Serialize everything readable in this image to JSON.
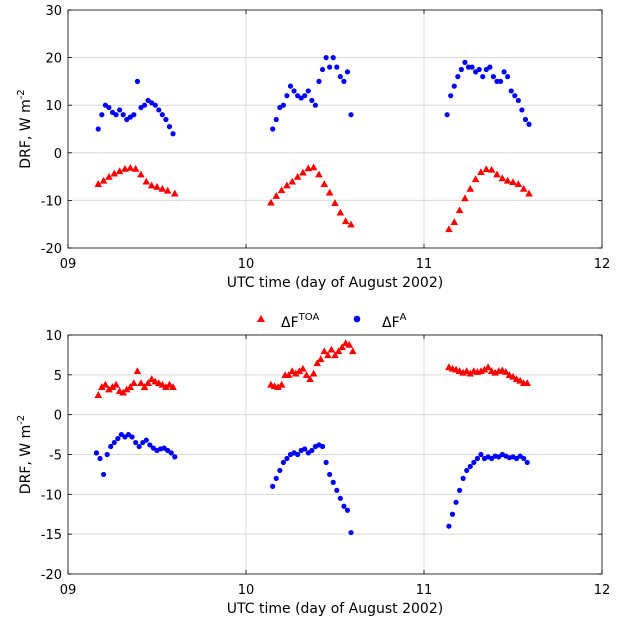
{
  "legend": {
    "toa_main": "ΔF",
    "toa_sup": "TOA",
    "atm_main": "ΔF",
    "atm_sup": "A",
    "colors": {
      "toa": "#ff0000",
      "atm": "#0000ff"
    }
  },
  "chart_data": [
    {
      "type": "scatter",
      "xlabel": "UTC time (day of August 2002)",
      "ylabel_main": "DRF, W m",
      "ylabel_sup": "-2",
      "xlim": [
        9,
        12
      ],
      "ylim": [
        -20,
        30
      ],
      "xticks": [
        9,
        10,
        11,
        12
      ],
      "xtick_labels": [
        "09",
        "10",
        "11",
        "12"
      ],
      "yticks": [
        -20,
        -10,
        0,
        10,
        20,
        30
      ],
      "grid": true,
      "series": [
        {
          "key": "toa",
          "marker": "triangle",
          "color": "#ff0000",
          "x": [
            9.17,
            9.2,
            9.23,
            9.26,
            9.29,
            9.32,
            9.35,
            9.38,
            9.41,
            9.44,
            9.47,
            9.5,
            9.53,
            9.56,
            9.6,
            10.14,
            10.17,
            10.2,
            10.23,
            10.26,
            10.29,
            10.32,
            10.35,
            10.38,
            10.41,
            10.44,
            10.47,
            10.5,
            10.53,
            10.56,
            10.59,
            11.14,
            11.17,
            11.2,
            11.23,
            11.26,
            11.29,
            11.32,
            11.35,
            11.38,
            11.41,
            11.44,
            11.47,
            11.5,
            11.53,
            11.56,
            11.59
          ],
          "y": [
            -6.5,
            -5.8,
            -5,
            -4.3,
            -3.8,
            -3.3,
            -3.1,
            -3.3,
            -4.5,
            -6,
            -6.8,
            -7.1,
            -7.5,
            -7.9,
            -8.5,
            -10.4,
            -9,
            -7.8,
            -6.8,
            -6,
            -5,
            -4.1,
            -3.2,
            -3,
            -4.5,
            -6.5,
            -8.3,
            -10.5,
            -12.5,
            -14.3,
            -15,
            -16,
            -14.5,
            -12,
            -9.5,
            -7.5,
            -5.5,
            -4,
            -3.4,
            -3.5,
            -4.5,
            -5.3,
            -5.8,
            -6.1,
            -6.5,
            -7.5,
            -8.5
          ]
        },
        {
          "key": "atm",
          "marker": "circle",
          "color": "#0000ff",
          "x": [
            9.17,
            9.19,
            9.21,
            9.23,
            9.25,
            9.27,
            9.29,
            9.31,
            9.33,
            9.35,
            9.37,
            9.39,
            9.41,
            9.43,
            9.45,
            9.47,
            9.49,
            9.51,
            9.53,
            9.55,
            9.57,
            9.59,
            10.15,
            10.17,
            10.19,
            10.21,
            10.23,
            10.25,
            10.27,
            10.29,
            10.31,
            10.33,
            10.35,
            10.37,
            10.39,
            10.41,
            10.43,
            10.45,
            10.47,
            10.49,
            10.51,
            10.53,
            10.55,
            10.57,
            10.59,
            11.13,
            11.15,
            11.17,
            11.19,
            11.21,
            11.23,
            11.25,
            11.27,
            11.29,
            11.31,
            11.33,
            11.35,
            11.37,
            11.39,
            11.41,
            11.43,
            11.45,
            11.47,
            11.49,
            11.51,
            11.53,
            11.55,
            11.57,
            11.59
          ],
          "y": [
            5,
            8,
            10,
            9.5,
            8.5,
            8,
            9,
            8,
            7,
            7.5,
            8,
            15,
            9.5,
            10,
            11,
            10.5,
            10,
            9,
            8,
            7,
            5.5,
            4,
            5,
            7,
            9.5,
            10,
            12,
            14,
            13,
            12,
            11.5,
            12,
            13,
            11,
            10,
            15,
            17.5,
            20,
            18,
            20,
            18,
            16,
            15,
            17,
            8,
            8,
            12,
            14,
            16,
            17.5,
            19,
            18,
            18,
            17,
            17.5,
            16,
            17.5,
            18,
            16,
            15,
            15,
            17,
            16,
            13,
            12,
            11,
            9,
            7,
            6
          ]
        }
      ]
    },
    {
      "type": "scatter",
      "xlabel": "UTC time (day of August 2002)",
      "ylabel_main": "DRF, W m",
      "ylabel_sup": "-2",
      "xlim": [
        9,
        12
      ],
      "ylim": [
        -20,
        10
      ],
      "xticks": [
        9,
        10,
        11,
        12
      ],
      "xtick_labels": [
        "09",
        "10",
        "11",
        "12"
      ],
      "yticks": [
        -20,
        -15,
        -10,
        -5,
        0,
        5,
        10
      ],
      "grid": true,
      "series": [
        {
          "key": "toa",
          "marker": "triangle",
          "color": "#ff0000",
          "x": [
            9.17,
            9.19,
            9.21,
            9.23,
            9.25,
            9.27,
            9.29,
            9.31,
            9.33,
            9.35,
            9.37,
            9.39,
            9.41,
            9.43,
            9.45,
            9.47,
            9.49,
            9.51,
            9.53,
            9.55,
            9.57,
            9.59,
            10.14,
            10.16,
            10.18,
            10.2,
            10.22,
            10.24,
            10.26,
            10.28,
            10.3,
            10.32,
            10.34,
            10.36,
            10.38,
            10.4,
            10.42,
            10.44,
            10.46,
            10.48,
            10.5,
            10.52,
            10.54,
            10.56,
            10.58,
            10.6,
            11.14,
            11.16,
            11.18,
            11.2,
            11.22,
            11.24,
            11.26,
            11.28,
            11.3,
            11.32,
            11.34,
            11.36,
            11.38,
            11.4,
            11.42,
            11.44,
            11.46,
            11.48,
            11.5,
            11.52,
            11.54,
            11.56,
            11.58
          ],
          "y": [
            2.5,
            3.5,
            3.8,
            3.2,
            3.5,
            3.8,
            3,
            2.8,
            3.2,
            3.5,
            4,
            5.5,
            4,
            3.5,
            4,
            4.5,
            4.2,
            4,
            3.8,
            3.5,
            3.8,
            3.5,
            3.8,
            3.6,
            3.5,
            3.8,
            5,
            5,
            5.5,
            5.2,
            5.5,
            5.8,
            5,
            4.5,
            5.2,
            6.5,
            7,
            8,
            7.5,
            8.2,
            7.5,
            8,
            8.5,
            9,
            8.8,
            8,
            6,
            5.8,
            5.7,
            5.5,
            5.3,
            5.5,
            5.2,
            5.5,
            5.4,
            5.5,
            5.7,
            6,
            5.5,
            5.3,
            5.5,
            5.6,
            5.4,
            5,
            4.8,
            4.5,
            4.3,
            4,
            4
          ]
        },
        {
          "key": "atm",
          "marker": "circle",
          "color": "#0000ff",
          "x": [
            9.16,
            9.18,
            9.2,
            9.22,
            9.24,
            9.26,
            9.28,
            9.3,
            9.32,
            9.34,
            9.36,
            9.38,
            9.4,
            9.42,
            9.44,
            9.46,
            9.48,
            9.5,
            9.52,
            9.54,
            9.56,
            9.58,
            9.6,
            10.15,
            10.17,
            10.19,
            10.21,
            10.23,
            10.25,
            10.27,
            10.29,
            10.31,
            10.33,
            10.35,
            10.37,
            10.39,
            10.41,
            10.43,
            10.45,
            10.47,
            10.49,
            10.51,
            10.53,
            10.55,
            10.57,
            10.59,
            11.14,
            11.16,
            11.18,
            11.2,
            11.22,
            11.24,
            11.26,
            11.28,
            11.3,
            11.32,
            11.34,
            11.36,
            11.38,
            11.4,
            11.42,
            11.44,
            11.46,
            11.48,
            11.5,
            11.52,
            11.54,
            11.56,
            11.58
          ],
          "y": [
            -4.8,
            -5.5,
            -7.5,
            -5,
            -4,
            -3.5,
            -3,
            -2.5,
            -2.8,
            -2.5,
            -2.8,
            -3.5,
            -4,
            -3.5,
            -3.2,
            -3.8,
            -4.2,
            -4.5,
            -4.3,
            -4.2,
            -4.5,
            -4.8,
            -5.3,
            -9,
            -8,
            -7,
            -6,
            -5.5,
            -5,
            -4.8,
            -5,
            -4.5,
            -4.3,
            -4.8,
            -4.5,
            -4,
            -3.8,
            -4,
            -6,
            -7.5,
            -8.5,
            -9.5,
            -10.5,
            -11.5,
            -12,
            -14.8,
            -14,
            -12.5,
            -11,
            -9.5,
            -8,
            -7,
            -6.5,
            -6,
            -5.5,
            -5,
            -5.5,
            -5.3,
            -5.5,
            -5.2,
            -5.3,
            -5,
            -5.2,
            -5.4,
            -5.3,
            -5.5,
            -5.2,
            -5.5,
            -6
          ]
        }
      ]
    }
  ]
}
